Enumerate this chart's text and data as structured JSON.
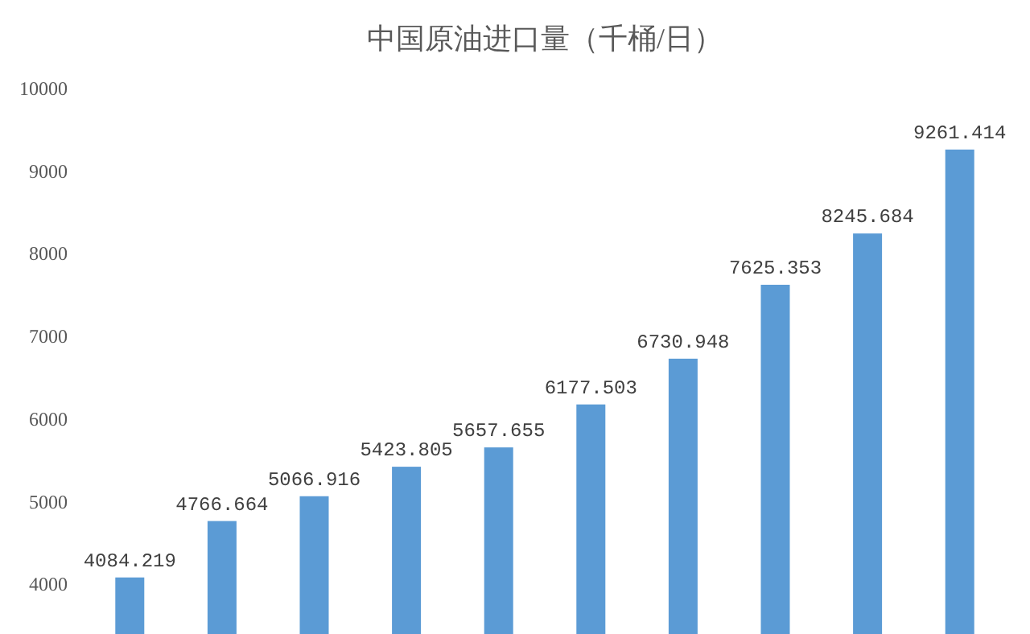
{
  "chart_data": {
    "type": "bar",
    "title": "中国原油进口量（千桶/日）",
    "categories": [
      null,
      null,
      null,
      null,
      null,
      null,
      null,
      null,
      null,
      null
    ],
    "values": [
      4084.219,
      4766.664,
      5066.916,
      5423.805,
      5657.655,
      6177.503,
      6730.948,
      7625.353,
      8245.684,
      9261.414
    ],
    "color": "#5b9bd5",
    "ylim": [
      3400,
      10000
    ],
    "yticks": [
      4000,
      5000,
      6000,
      7000,
      8000,
      9000,
      10000
    ],
    "data_labels": true
  }
}
